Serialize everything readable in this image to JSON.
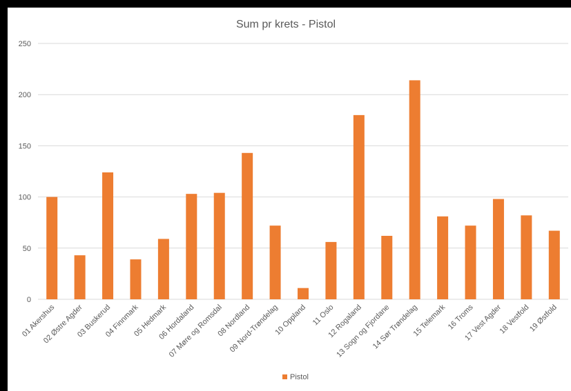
{
  "chart_data": {
    "type": "bar",
    "title": "Sum pr krets - Pistol",
    "xlabel": "",
    "ylabel": "",
    "ylim": [
      0,
      250
    ],
    "yticks": [
      0,
      50,
      100,
      150,
      200,
      250
    ],
    "grid": true,
    "legend_position": "bottom",
    "categories": [
      "01 Akershus",
      "02 Østre Agder",
      "03 Buskerud",
      "04 Finnmark",
      "05 Hedmark",
      "06 Hordaland",
      "07 Møre og Romsdal",
      "08 Nordland",
      "09 Nord-Trøndelag",
      "10 Oppland",
      "11 Oslo",
      "12 Rogaland",
      "13 Sogn og Fjordane",
      "14 Sør Trøndelag",
      "15 Telemark",
      "16 Troms",
      "17 Vest Agder",
      "18 Vestfold",
      "19 Østfold"
    ],
    "series": [
      {
        "name": "Pistol",
        "color": "#ED7D31",
        "values": [
          100,
          43,
          124,
          39,
          59,
          103,
          104,
          143,
          72,
          11,
          56,
          180,
          62,
          214,
          81,
          72,
          98,
          82,
          67
        ]
      }
    ]
  }
}
